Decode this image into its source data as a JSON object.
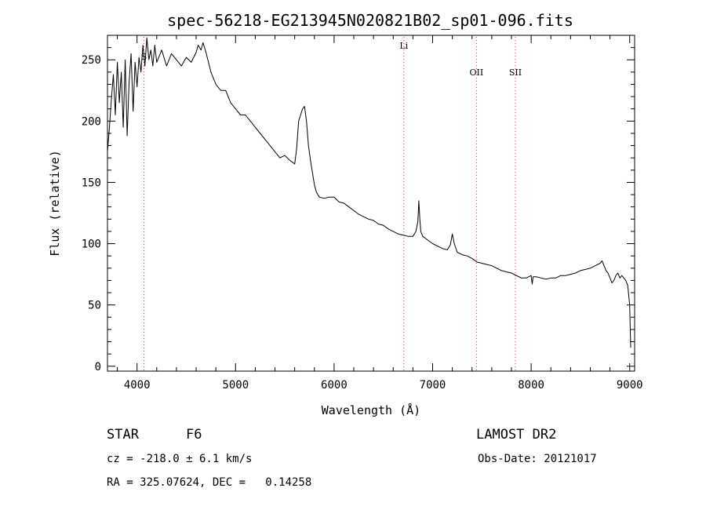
{
  "chart_data": {
    "type": "line",
    "title": "spec-56218-EG213945N020821B02_sp01-096.fits",
    "xlabel": "Wavelength (Å)",
    "ylabel": "Flux (relative)",
    "xlim": [
      3700,
      9050
    ],
    "ylim": [
      -4,
      270
    ],
    "xticks": [
      4000,
      5000,
      6000,
      7000,
      8000,
      9000
    ],
    "yticks": [
      0,
      50,
      100,
      150,
      200,
      250
    ],
    "grid": false,
    "lines": [
      {
        "label": "S",
        "x": 4070
      },
      {
        "label": "Li",
        "x": 6708
      },
      {
        "label": "OII",
        "x": 7445
      },
      {
        "label": "SII",
        "x": 7840
      }
    ],
    "series": [
      {
        "x": [
          3700,
          3720,
          3740,
          3760,
          3780,
          3800,
          3820,
          3840,
          3860,
          3880,
          3900,
          3920,
          3940,
          3960,
          3980,
          4000,
          4020,
          4040,
          4060,
          4080,
          4100,
          4120,
          4140,
          4160,
          4180,
          4200,
          4250,
          4300,
          4350,
          4400,
          4450,
          4500,
          4550,
          4600,
          4620,
          4650,
          4670,
          4700,
          4750,
          4800,
          4850,
          4900,
          4950,
          5000,
          5050,
          5100,
          5150,
          5200,
          5250,
          5300,
          5350,
          5400,
          5450,
          5500,
          5550,
          5600,
          5620,
          5640,
          5660,
          5680,
          5700,
          5720,
          5740,
          5760,
          5780,
          5800,
          5820,
          5850,
          5900,
          5950,
          6000,
          6050,
          6100,
          6150,
          6200,
          6250,
          6300,
          6350,
          6400,
          6450,
          6500,
          6550,
          6600,
          6650,
          6700,
          6750,
          6800,
          6830,
          6850,
          6860,
          6870,
          6880,
          6900,
          6950,
          7000,
          7050,
          7100,
          7150,
          7180,
          7200,
          7220,
          7250,
          7300,
          7350,
          7400,
          7450,
          7500,
          7550,
          7600,
          7650,
          7700,
          7750,
          7800,
          7850,
          7900,
          7950,
          8000,
          8010,
          8020,
          8050,
          8100,
          8150,
          8200,
          8250,
          8300,
          8350,
          8400,
          8450,
          8500,
          8550,
          8600,
          8650,
          8700,
          8720,
          8740,
          8760,
          8780,
          8800,
          8820,
          8840,
          8860,
          8880,
          8900,
          8920,
          8940,
          8960,
          8980,
          9000,
          9010
        ],
        "values": [
          175,
          195,
          218,
          238,
          205,
          248,
          215,
          240,
          195,
          250,
          188,
          232,
          255,
          208,
          248,
          228,
          252,
          240,
          262,
          245,
          268,
          250,
          258,
          245,
          262,
          248,
          258,
          245,
          255,
          250,
          245,
          252,
          248,
          256,
          262,
          258,
          264,
          256,
          240,
          230,
          225,
          225,
          215,
          210,
          205,
          205,
          200,
          195,
          190,
          185,
          180,
          175,
          170,
          172,
          168,
          165,
          178,
          200,
          205,
          210,
          212,
          200,
          180,
          168,
          158,
          148,
          142,
          138,
          137,
          138,
          138,
          134,
          133,
          130,
          127,
          124,
          122,
          120,
          119,
          116,
          115,
          112,
          110,
          108,
          107,
          106,
          106,
          110,
          118,
          135,
          120,
          110,
          106,
          103,
          100,
          98,
          96,
          95,
          99,
          108,
          100,
          93,
          91,
          90,
          88,
          85,
          84,
          83,
          82,
          80,
          78,
          77,
          76,
          74,
          72,
          72,
          74,
          67,
          73,
          73,
          72,
          71,
          72,
          72,
          74,
          74,
          75,
          76,
          78,
          79,
          80,
          82,
          84,
          86,
          82,
          78,
          76,
          72,
          68,
          70,
          74,
          76,
          72,
          74,
          72,
          70,
          66,
          50,
          15
        ]
      }
    ]
  },
  "footer": {
    "object_class": "STAR",
    "subclass": "F6",
    "release": "LAMOST DR2",
    "cz_text": "cz = -218.0 ± 6.1 km/s",
    "obs_date_text": "Obs-Date: 20121017",
    "coords_text": "RA = 325.07624, DEC =   0.14258"
  },
  "colors": {
    "spectrum": "#000000",
    "line_markers": "#e03030",
    "axes": "#000000"
  }
}
